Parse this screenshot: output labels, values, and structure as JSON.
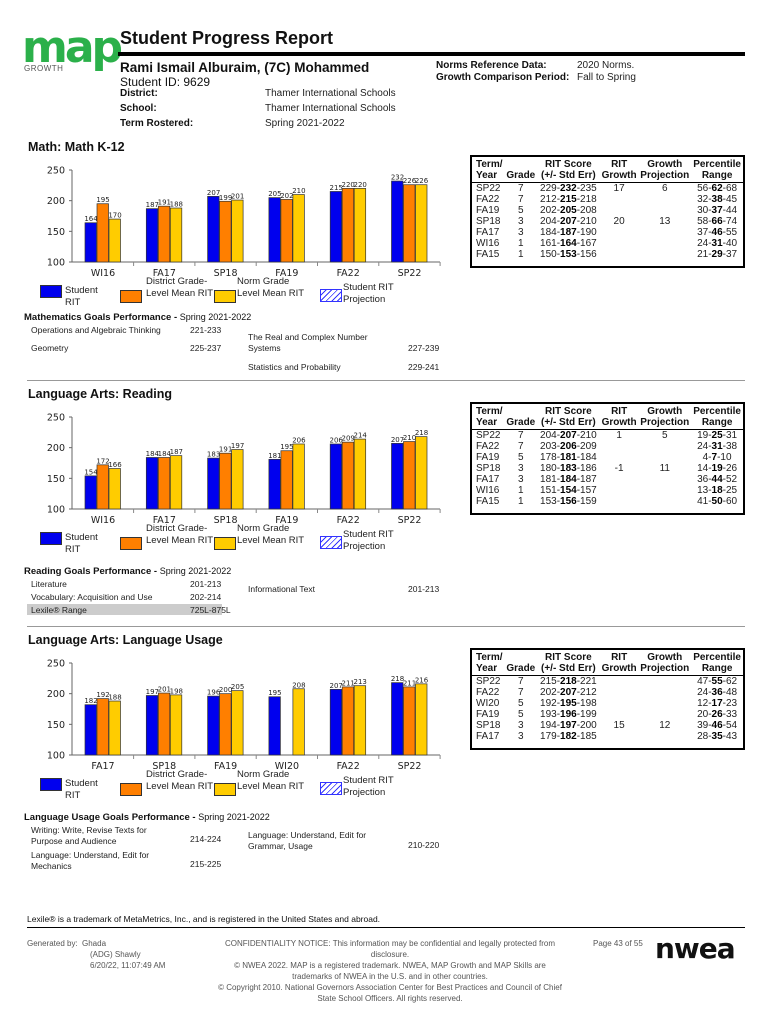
{
  "header": {
    "logo_text": "map",
    "logo_sub": "GROWTH",
    "title": "Student Progress Report",
    "student_name": "Rami Ismail Alburaim, (7C) Mohammed",
    "student_id": "Student ID: 9629",
    "fields": [
      {
        "label": "District:",
        "value": "Thamer International Schools"
      },
      {
        "label": "School:",
        "value": "Thamer International Schools"
      },
      {
        "label": "Term Rostered:",
        "value": "Spring 2021-2022"
      }
    ],
    "norms_label": "Norms Reference Data:",
    "norms_value": "2020 Norms.",
    "growth_label": "Growth Comparison Period:",
    "growth_value": "Fall to Spring"
  },
  "colors": {
    "student_rit": "#0000ee",
    "district_mean": "#ff7f00",
    "norm_mean": "#ffcc00"
  },
  "legend": [
    "Student RIT",
    "District Grade-Level Mean RIT",
    "Norm Grade Level Mean RIT",
    "Student RIT Projection"
  ],
  "table_headers": [
    "Term/ Year",
    "Grade",
    "RIT Score (+/- Std Err)",
    "RIT Growth",
    "Growth Projection",
    "Percentile Range"
  ],
  "sections": [
    {
      "title": "Math: Math K-12",
      "goals_title": "Mathematics Goals Performance - ",
      "goals_term": "Spring 2021-2022",
      "goals_left": [
        {
          "name": "Operations and Algebraic Thinking",
          "range": "221-233"
        },
        {
          "name": "Geometry",
          "range": "225-237"
        }
      ],
      "goals_right": [
        {
          "name": "The Real and Complex Number Systems",
          "range": "227-239"
        },
        {
          "name": "Statistics and Probability",
          "range": "229-241"
        }
      ],
      "table": [
        [
          "SP22",
          "7",
          "229-232-235",
          "17",
          "6",
          "56-62-68"
        ],
        [
          "FA22",
          "7",
          "212-215-218",
          "",
          "",
          "32-38-45"
        ],
        [
          "FA19",
          "5",
          "202-205-208",
          "",
          "",
          "30-37-44"
        ],
        [
          "SP18",
          "3",
          "204-207-210",
          "20",
          "13",
          "58-66-74"
        ],
        [
          "FA17",
          "3",
          "184-187-190",
          "",
          "",
          "37-46-55"
        ],
        [
          "WI16",
          "1",
          "161-164-167",
          "",
          "",
          "24-31-40"
        ],
        [
          "FA15",
          "1",
          "150-153-156",
          "",
          "",
          "21-29-37"
        ]
      ]
    },
    {
      "title": "Language Arts: Reading",
      "goals_title": "Reading Goals Performance - ",
      "goals_term": "Spring 2021-2022",
      "goals_left": [
        {
          "name": "Literature",
          "range": "201-213"
        },
        {
          "name": "Vocabulary: Acquisition and Use",
          "range": "202-214"
        }
      ],
      "lexile_label": "Lexile® Range",
      "lexile_value": "725L-875L",
      "goals_right": [
        {
          "name": "Informational Text",
          "range": "201-213"
        }
      ],
      "table": [
        [
          "SP22",
          "7",
          "204-207-210",
          "1",
          "5",
          "19-25-31"
        ],
        [
          "FA22",
          "7",
          "203-206-209",
          "",
          "",
          "24-31-38"
        ],
        [
          "FA19",
          "5",
          "178-181-184",
          "",
          "",
          "4-7-10"
        ],
        [
          "SP18",
          "3",
          "180-183-186",
          "-1",
          "11",
          "14-19-26"
        ],
        [
          "FA17",
          "3",
          "181-184-187",
          "",
          "",
          "36-44-52"
        ],
        [
          "WI16",
          "1",
          "151-154-157",
          "",
          "",
          "13-18-25"
        ],
        [
          "FA15",
          "1",
          "153-156-159",
          "",
          "",
          "41-50-60"
        ]
      ]
    },
    {
      "title": "Language Arts: Language Usage",
      "goals_title": "Language Usage Goals Performance - ",
      "goals_term": "Spring 2021-2022",
      "goals_left": [
        {
          "name": "Writing: Write, Revise Texts for Purpose and Audience",
          "range": "214-224"
        },
        {
          "name": "Language: Understand, Edit for Mechanics",
          "range": "215-225"
        }
      ],
      "goals_right": [
        {
          "name": "Language: Understand, Edit for Grammar, Usage",
          "range": "210-220"
        }
      ],
      "table": [
        [
          "SP22",
          "7",
          "215-218-221",
          "",
          "",
          "47-55-62"
        ],
        [
          "FA22",
          "7",
          "202-207-212",
          "",
          "",
          "24-36-48"
        ],
        [
          "WI20",
          "5",
          "192-195-198",
          "",
          "",
          "12-17-23"
        ],
        [
          "FA19",
          "5",
          "193-196-199",
          "",
          "",
          "20-26-33"
        ],
        [
          "SP18",
          "3",
          "194-197-200",
          "15",
          "12",
          "39-46-54"
        ],
        [
          "FA17",
          "3",
          "179-182-185",
          "",
          "",
          "28-35-43"
        ]
      ]
    }
  ],
  "chart_data": [
    {
      "type": "bar",
      "title": "Math: Math K-12",
      "ylim": [
        100,
        250
      ],
      "yticks": [
        100,
        150,
        200,
        250
      ],
      "legend": "bottom",
      "categories": [
        "WI16",
        "FA17",
        "SP18",
        "FA19",
        "FA22",
        "SP22"
      ],
      "series": [
        {
          "name": "Student RIT",
          "values": [
            164,
            187,
            207,
            205,
            215,
            232
          ]
        },
        {
          "name": "District Grade-Level Mean RIT",
          "values": [
            195,
            191,
            199,
            202,
            220,
            226
          ]
        },
        {
          "name": "Norm Grade Level Mean RIT",
          "values": [
            170,
            188,
            201,
            210,
            220,
            226
          ]
        }
      ]
    },
    {
      "type": "bar",
      "title": "Language Arts: Reading",
      "ylim": [
        100,
        250
      ],
      "yticks": [
        100,
        150,
        200,
        250
      ],
      "legend": "bottom",
      "categories": [
        "WI16",
        "FA17",
        "SP18",
        "FA19",
        "FA22",
        "SP22"
      ],
      "series": [
        {
          "name": "Student RIT",
          "values": [
            154,
            184,
            183,
            181,
            206,
            207
          ]
        },
        {
          "name": "District Grade-Level Mean RIT",
          "values": [
            172,
            184,
            191,
            195,
            209,
            210
          ]
        },
        {
          "name": "Norm Grade Level Mean RIT",
          "values": [
            166,
            187,
            197,
            206,
            214,
            218
          ]
        }
      ]
    },
    {
      "type": "bar",
      "title": "Language Arts: Language Usage",
      "ylim": [
        100,
        250
      ],
      "yticks": [
        100,
        150,
        200,
        250
      ],
      "legend": "bottom",
      "categories": [
        "FA17",
        "SP18",
        "FA19",
        "WI20",
        "FA22",
        "SP22"
      ],
      "series": [
        {
          "name": "Student RIT",
          "values": [
            182,
            197,
            196,
            195,
            207,
            218
          ]
        },
        {
          "name": "District Grade-Level Mean RIT",
          "values": [
            192,
            201,
            200,
            null,
            211,
            211
          ]
        },
        {
          "name": "Norm Grade Level Mean RIT",
          "values": [
            188,
            198,
            205,
            208,
            213,
            216
          ]
        }
      ]
    }
  ],
  "footer": {
    "lexile_note": "Lexile® is a trademark of MetaMetrics, Inc., and is registered in the United States and abroad.",
    "generated_label": "Generated by:",
    "generated_lines": [
      "Ghada",
      "(ADG) Shawly",
      "6/20/22, 11:07:49 AM"
    ],
    "notice_lines": [
      "CONFIDENTIALITY NOTICE: This information may be confidential and legally protected from",
      "disclosure.",
      "© NWEA 2022. MAP is a registered trademark. NWEA, MAP Growth and MAP Skills are",
      "trademarks of NWEA in the U.S. and in other countries.",
      "© Copyright 2010. National Governors Association Center for Best Practices and Council of Chief",
      "State School Officers. All rights reserved."
    ],
    "page": "Page 43 of 55",
    "logo_text": "nwea"
  }
}
